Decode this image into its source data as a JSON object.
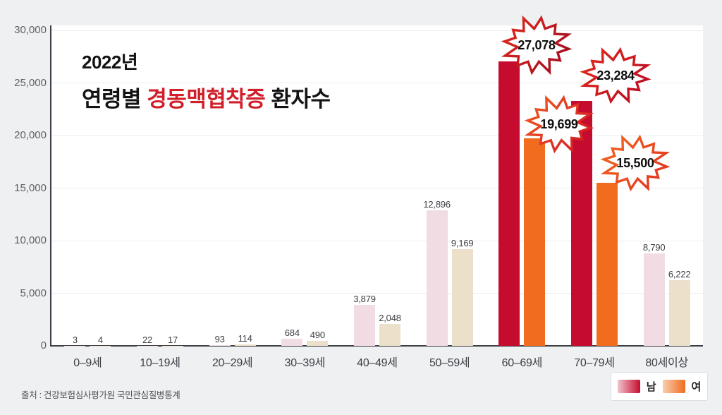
{
  "title": {
    "year_line": "2022년",
    "main_prefix": "연령별 ",
    "main_highlight": "경동맥협착증",
    "main_suffix": " 환자수"
  },
  "source_note": "출처 : 건강보험심사평가원 국민관심질병통계",
  "legend": {
    "male_label": "남",
    "female_label": "여"
  },
  "colors": {
    "male_strong": "#c60c2e",
    "male_light": "#f2dce4",
    "female_strong": "#f16c1f",
    "female_light": "#ece0cb",
    "title_highlight_red": "#d0202a",
    "badge_red_start": "#e02a1e",
    "badge_red_end": "#a90f20",
    "badge_orangered_start": "#f05a22",
    "badge_orangered_end": "#d62025",
    "badge_orange_start": "#f3671f",
    "badge_orange_end": "#e33a20"
  },
  "chart_data": {
    "type": "bar",
    "title": "2022년 연령별 경동맥협착증 환자수",
    "categories": [
      "0–9세",
      "10–19세",
      "20–29세",
      "30–39세",
      "40–49세",
      "50–59세",
      "60–69세",
      "70–79세",
      "80세이상"
    ],
    "series": [
      {
        "name": "남",
        "values": [
          3,
          22,
          93,
          684,
          3879,
          12896,
          27078,
          23284,
          8790
        ]
      },
      {
        "name": "여",
        "values": [
          4,
          17,
          114,
          490,
          2048,
          9169,
          19699,
          15500,
          6222
        ]
      }
    ],
    "ylim": [
      0,
      30000
    ],
    "yticks": [
      0,
      5000,
      10000,
      15000,
      20000,
      25000,
      30000
    ],
    "grid": true,
    "legend_position": "bottom-right",
    "highlighted_categories": [
      6,
      7
    ],
    "badge_callouts": [
      {
        "category_index": 6,
        "series_index": 0
      },
      {
        "category_index": 6,
        "series_index": 1
      },
      {
        "category_index": 7,
        "series_index": 0
      },
      {
        "category_index": 7,
        "series_index": 1
      }
    ]
  }
}
